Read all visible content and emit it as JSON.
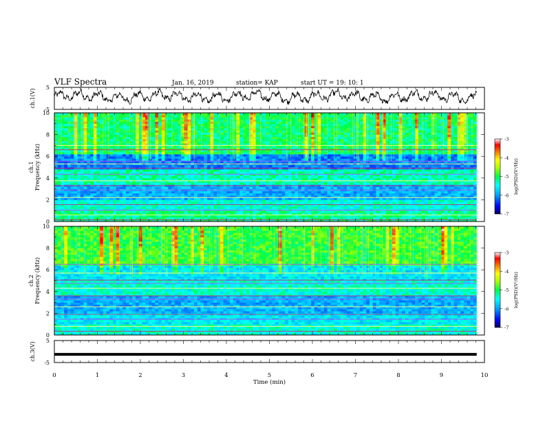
{
  "header": {
    "title": "VLF Spectra",
    "date": "Jan. 16, 2019",
    "station": "station= KAP",
    "start": "start  UT =   19: 10: 1"
  },
  "chart_data": [
    {
      "type": "line",
      "panel": "ch1-waveform",
      "ylabel": "ch.1(V)",
      "ylim": [
        -5,
        5
      ],
      "yticks": [
        "5",
        "-5"
      ],
      "xlim": [
        0,
        10
      ],
      "x_extent_min": 9.82,
      "description_values": "noisy oscillating trace mostly between -3 and 4 V"
    },
    {
      "type": "heatmap",
      "panel": "ch1-spectrogram",
      "ylabel": "ch.1\nFrequency (kHz)",
      "ylim": [
        0,
        10
      ],
      "yticks": [
        "0",
        "2",
        "4",
        "6",
        "8",
        "10"
      ],
      "xlim": [
        0,
        9.82
      ],
      "colorbar": {
        "label": "log(PSD)(V²/Hz)",
        "range": [
          -7,
          -3
        ],
        "ticks": [
          "-3",
          "-4",
          "-5",
          "-6",
          "-7"
        ],
        "colors": [
          "#000060",
          "#0000ff",
          "#00a0ff",
          "#00ffff",
          "#00ff40",
          "#b0ff00",
          "#ffff00",
          "#ff8000",
          "#ff0000",
          "#ffffff"
        ]
      },
      "bands_khz": [
        0.15,
        0.6,
        1.05,
        1.55,
        2.2,
        2.9,
        3.3,
        3.75,
        4.35,
        4.9,
        5.3,
        5.55,
        6.6,
        7.0
      ],
      "levels": [
        {
          "from_khz": 0,
          "to_khz": 1.0,
          "level": -5.2
        },
        {
          "from_khz": 1.0,
          "to_khz": 2.0,
          "level": -5.4
        },
        {
          "from_khz": 2.0,
          "to_khz": 3.5,
          "level": -5.9
        },
        {
          "from_khz": 3.5,
          "to_khz": 4.8,
          "level": -5.3
        },
        {
          "from_khz": 4.8,
          "to_khz": 6.2,
          "level": -6.1
        },
        {
          "from_khz": 6.2,
          "to_khz": 10,
          "level": -5.1
        }
      ]
    },
    {
      "type": "heatmap",
      "panel": "ch2-spectrogram",
      "ylabel": "ch.2\nFrequency (kHz)",
      "ylim": [
        0,
        10
      ],
      "yticks": [
        "0",
        "2",
        "4",
        "6",
        "8",
        "10"
      ],
      "xlim": [
        0,
        9.82
      ],
      "colorbar": {
        "label": "log(PSD)(V²/Hz)",
        "range": [
          -7,
          -3
        ],
        "ticks": [
          "-3",
          "-4",
          "-5",
          "-6",
          "-7"
        ],
        "colors": [
          "#000060",
          "#0000ff",
          "#00a0ff",
          "#00ffff",
          "#00ff40",
          "#b0ff00",
          "#ffff00",
          "#ff8000",
          "#ff0000",
          "#ffffff"
        ]
      },
      "bands_khz": [
        0.35,
        0.8,
        1.45,
        1.9,
        2.6,
        3.3,
        3.6,
        4.3,
        4.75,
        5.05,
        5.7,
        6.5
      ],
      "levels": [
        {
          "from_khz": 0,
          "to_khz": 1.0,
          "level": -5.4
        },
        {
          "from_khz": 1.0,
          "to_khz": 2.0,
          "level": -5.6
        },
        {
          "from_khz": 2.0,
          "to_khz": 3.6,
          "level": -5.9
        },
        {
          "from_khz": 3.6,
          "to_khz": 5.0,
          "level": -5.4
        },
        {
          "from_khz": 5.0,
          "to_khz": 6.5,
          "level": -5.6
        },
        {
          "from_khz": 6.5,
          "to_khz": 10,
          "level": -4.9
        }
      ]
    },
    {
      "type": "line",
      "panel": "ch3-waveform",
      "ylabel": "ch.3(V)",
      "ylim": [
        -5,
        5
      ],
      "yticks": [
        "5",
        "-5"
      ],
      "xlim": [
        0,
        10
      ],
      "flat_value": -1.3,
      "xlabel": "Time (min)",
      "xticks": [
        "0",
        "1",
        "2",
        "3",
        "4",
        "5",
        "6",
        "7",
        "8",
        "9",
        "10"
      ]
    }
  ]
}
